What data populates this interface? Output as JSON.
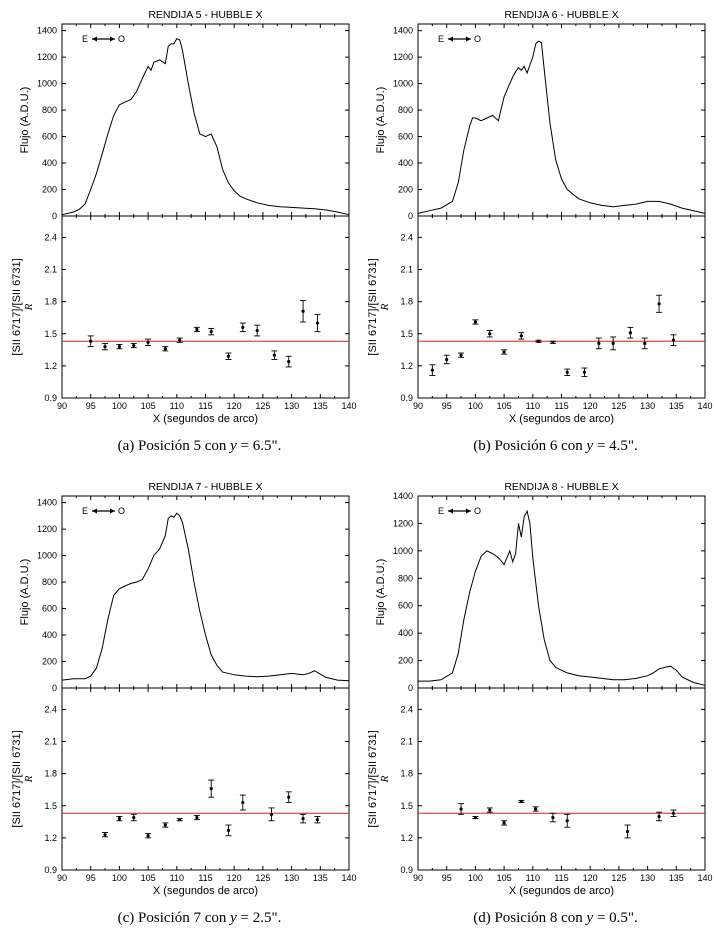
{
  "chart_data": [
    {
      "id": "a",
      "type": "line",
      "title": "RENDIJA 5 - HUBBLE X",
      "caption": "(a) Posición 5 con y = 6.5\".",
      "caption_parts": {
        "pre": "(a) Posición 5 con ",
        "var": "y",
        "post": " = 6.5\"."
      },
      "direction_label": {
        "left": "E",
        "right": "O"
      },
      "xlabel": "X (segundos de arco)",
      "xlim": [
        90,
        140
      ],
      "xticks": [
        90,
        95,
        100,
        105,
        110,
        115,
        120,
        125,
        130,
        135,
        140
      ],
      "flux": {
        "ylabel": "Flujo (A.D.U.)",
        "ylim": [
          0,
          1450
        ],
        "yticks": [
          0,
          200,
          400,
          600,
          800,
          1000,
          1200,
          1400
        ],
        "x": [
          90,
          92,
          93,
          94,
          95,
          96,
          97,
          98,
          99,
          100,
          101,
          102,
          103,
          104,
          105,
          105.5,
          106,
          107,
          108,
          108.5,
          109,
          109.5,
          110,
          110.5,
          111,
          112,
          113,
          114,
          115,
          116,
          117,
          118,
          119,
          120,
          121,
          122,
          124,
          126,
          128,
          130,
          132,
          134,
          136,
          138,
          140
        ],
        "y": [
          10,
          30,
          50,
          90,
          200,
          320,
          470,
          620,
          760,
          840,
          860,
          880,
          940,
          1040,
          1130,
          1100,
          1160,
          1180,
          1150,
          1280,
          1300,
          1300,
          1340,
          1330,
          1250,
          1000,
          780,
          620,
          600,
          620,
          520,
          350,
          250,
          190,
          150,
          130,
          100,
          80,
          70,
          65,
          60,
          55,
          45,
          30,
          10
        ]
      },
      "ratio": {
        "ylabel": "[SII 6717]/[SII 6731]",
        "ylabel2": "R",
        "ylim": [
          0.9,
          2.6
        ],
        "yticks": [
          0.9,
          1.2,
          1.5,
          1.8,
          2.1,
          2.4
        ],
        "reference_line": 1.43,
        "reference_color": "#e02020",
        "x": [
          95,
          97.5,
          100,
          102.5,
          105,
          108,
          110.5,
          113.5,
          116,
          119,
          121.5,
          124,
          127,
          129.5,
          132,
          134.5
        ],
        "y": [
          1.43,
          1.38,
          1.38,
          1.39,
          1.42,
          1.36,
          1.44,
          1.54,
          1.52,
          1.29,
          1.56,
          1.53,
          1.3,
          1.24,
          1.71,
          1.6
        ],
        "err": [
          0.05,
          0.03,
          0.02,
          0.02,
          0.03,
          0.02,
          0.02,
          0.02,
          0.03,
          0.03,
          0.04,
          0.05,
          0.04,
          0.05,
          0.1,
          0.08
        ]
      }
    },
    {
      "id": "b",
      "type": "line",
      "title": "RENDIJA 6 - HUBBLE X",
      "caption": "(b) Posición 6 con y = 4.5\".",
      "caption_parts": {
        "pre": "(b) Posición 6 con ",
        "var": "y",
        "post": " = 4.5\"."
      },
      "direction_label": {
        "left": "E",
        "right": "O"
      },
      "xlabel": "X (segundos de arco)",
      "xlim": [
        90,
        140
      ],
      "xticks": [
        90,
        95,
        100,
        105,
        110,
        115,
        120,
        125,
        130,
        135,
        140
      ],
      "flux": {
        "ylabel": "Flujo (A.D.U.)",
        "ylim": [
          0,
          1450
        ],
        "yticks": [
          0,
          200,
          400,
          600,
          800,
          1000,
          1200,
          1400
        ],
        "x": [
          90,
          92,
          94,
          96,
          97,
          98,
          99,
          99.5,
          100,
          101,
          102,
          103,
          104,
          105,
          106,
          106.5,
          107,
          107.5,
          108,
          108.5,
          109,
          109.5,
          110,
          110.5,
          111,
          111.5,
          112,
          113,
          114,
          115,
          116,
          118,
          120,
          122,
          124,
          126,
          128,
          130,
          132,
          134,
          136,
          138,
          140
        ],
        "y": [
          20,
          40,
          60,
          110,
          250,
          500,
          680,
          740,
          740,
          720,
          740,
          760,
          720,
          900,
          1000,
          1050,
          1090,
          1120,
          1100,
          1130,
          1080,
          1140,
          1200,
          1300,
          1320,
          1310,
          1100,
          700,
          420,
          280,
          200,
          130,
          100,
          80,
          70,
          80,
          90,
          110,
          110,
          90,
          60,
          40,
          20
        ]
      },
      "ratio": {
        "ylabel": "[SII 6717]/[SII 6731]",
        "ylabel2": "R",
        "ylim": [
          0.9,
          2.6
        ],
        "yticks": [
          0.9,
          1.2,
          1.5,
          1.8,
          2.1,
          2.4
        ],
        "reference_line": 1.43,
        "reference_color": "#e02020",
        "x": [
          92.5,
          95,
          97.5,
          100,
          102.5,
          105,
          108,
          111,
          113.5,
          116,
          119,
          121.5,
          124,
          127,
          129.5,
          132,
          134.5
        ],
        "y": [
          1.16,
          1.26,
          1.3,
          1.61,
          1.5,
          1.33,
          1.48,
          1.43,
          1.42,
          1.14,
          1.14,
          1.41,
          1.41,
          1.51,
          1.41,
          1.78,
          1.44
        ],
        "err": [
          0.05,
          0.04,
          0.02,
          0.02,
          0.03,
          0.02,
          0.03,
          0.01,
          0.01,
          0.03,
          0.04,
          0.05,
          0.06,
          0.05,
          0.05,
          0.08,
          0.05
        ]
      }
    },
    {
      "id": "c",
      "type": "line",
      "title": "RENDIJA 7 - HUBBLE X",
      "caption": "(c) Posición 7 con y = 2.5\".",
      "caption_parts": {
        "pre": "(c) Posición 7 con ",
        "var": "y",
        "post": " = 2.5\"."
      },
      "direction_label": {
        "left": "E",
        "right": "O"
      },
      "xlabel": "X (segundos de arco)",
      "xlim": [
        90,
        140
      ],
      "xticks": [
        90,
        95,
        100,
        105,
        110,
        115,
        120,
        125,
        130,
        135,
        140
      ],
      "flux": {
        "ylabel": "Flujo (A.D.U.)",
        "ylim": [
          0,
          1450
        ],
        "yticks": [
          0,
          200,
          400,
          600,
          800,
          1000,
          1200,
          1400
        ],
        "x": [
          90,
          92,
          94,
          95,
          96,
          97,
          98,
          99,
          100,
          101,
          102,
          103,
          104,
          105,
          106,
          107,
          108,
          108.5,
          109,
          109.5,
          110,
          110.5,
          111,
          112,
          113,
          114,
          115,
          116,
          117,
          118,
          120,
          122,
          124,
          126,
          128,
          130,
          132,
          133,
          134,
          136,
          138,
          140
        ],
        "y": [
          60,
          70,
          70,
          90,
          150,
          300,
          520,
          700,
          750,
          770,
          790,
          800,
          820,
          900,
          1000,
          1050,
          1150,
          1280,
          1300,
          1290,
          1320,
          1300,
          1250,
          1050,
          800,
          580,
          400,
          250,
          170,
          120,
          100,
          90,
          85,
          90,
          100,
          110,
          100,
          110,
          130,
          80,
          60,
          55
        ]
      },
      "ratio": {
        "ylabel": "[SII 6717]/[SII 6731]",
        "ylabel2": "R",
        "ylim": [
          0.9,
          2.6
        ],
        "yticks": [
          0.9,
          1.2,
          1.5,
          1.8,
          2.1,
          2.4
        ],
        "reference_line": 1.43,
        "reference_color": "#e02020",
        "x": [
          97.5,
          100,
          102.5,
          105,
          108,
          110.5,
          113.5,
          116,
          119,
          121.5,
          126.5,
          129.5,
          132,
          134.5
        ],
        "y": [
          1.23,
          1.38,
          1.39,
          1.22,
          1.32,
          1.37,
          1.39,
          1.66,
          1.27,
          1.53,
          1.42,
          1.58,
          1.38,
          1.37
        ],
        "err": [
          0.02,
          0.02,
          0.03,
          0.02,
          0.02,
          0.01,
          0.02,
          0.08,
          0.05,
          0.07,
          0.06,
          0.05,
          0.04,
          0.03
        ]
      }
    },
    {
      "id": "d",
      "type": "line",
      "title": "RENDIJA 8 - HUBBLE X",
      "caption": "(d) Posición 8 con y = 0.5\".",
      "caption_parts": {
        "pre": "(d) Posición 8 con ",
        "var": "y",
        "post": " = 0.5\"."
      },
      "direction_label": {
        "left": "E",
        "right": "O"
      },
      "xlabel": "X (segundos de arco)",
      "xlim": [
        90,
        140
      ],
      "xticks": [
        90,
        95,
        100,
        105,
        110,
        115,
        120,
        125,
        130,
        135,
        140
      ],
      "flux": {
        "ylabel": "Flujo (A.D.U.)",
        "ylim": [
          0,
          1400
        ],
        "yticks": [
          0,
          200,
          400,
          600,
          800,
          1000,
          1200,
          1400
        ],
        "x": [
          90,
          92,
          94,
          96,
          97,
          98,
          99,
          100,
          101,
          102,
          103,
          104,
          105,
          105.5,
          106,
          106.5,
          107,
          107.5,
          108,
          108.5,
          109,
          109.5,
          110,
          111,
          112,
          113,
          114,
          116,
          118,
          120,
          122,
          124,
          126,
          128,
          130,
          131,
          132,
          133,
          134,
          135,
          136,
          138,
          140
        ],
        "y": [
          50,
          50,
          60,
          110,
          250,
          500,
          700,
          850,
          960,
          1000,
          980,
          950,
          900,
          950,
          1000,
          920,
          980,
          1200,
          1100,
          1250,
          1290,
          1200,
          950,
          600,
          350,
          200,
          150,
          110,
          90,
          80,
          70,
          60,
          60,
          70,
          90,
          110,
          140,
          150,
          160,
          130,
          80,
          40,
          20
        ]
      },
      "ratio": {
        "ylabel": "[SII 6717]/[SII 6731]",
        "ylabel2": "R",
        "ylim": [
          0.9,
          2.6
        ],
        "yticks": [
          0.9,
          1.2,
          1.5,
          1.8,
          2.1,
          2.4
        ],
        "reference_line": 1.43,
        "reference_color": "#e02020",
        "x": [
          97.5,
          100,
          102.5,
          105,
          108,
          110.5,
          113.5,
          116,
          126.5,
          132,
          134.5
        ],
        "y": [
          1.47,
          1.39,
          1.46,
          1.34,
          1.54,
          1.47,
          1.39,
          1.36,
          1.26,
          1.4,
          1.43
        ],
        "err": [
          0.05,
          0.01,
          0.02,
          0.02,
          0.01,
          0.02,
          0.04,
          0.06,
          0.06,
          0.04,
          0.03
        ]
      }
    }
  ]
}
